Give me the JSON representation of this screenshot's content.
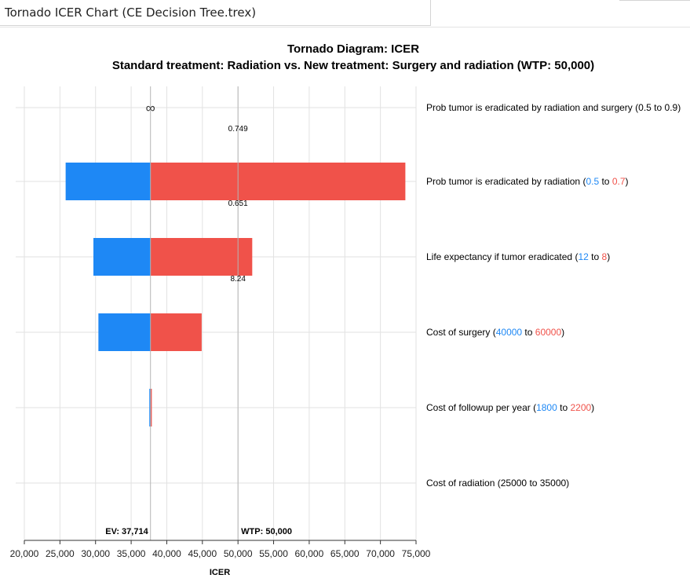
{
  "window": {
    "title": "Tornado ICER Chart (CE Decision Tree.trex)"
  },
  "chart_data": {
    "type": "tornado",
    "title": "Tornado Diagram: ICER",
    "subtitle": "Standard treatment: Radiation vs. New treatment: Surgery and radiation (WTP: 50,000)",
    "xlabel": "ICER",
    "xlim": [
      20000,
      75000
    ],
    "ticks": [
      20000,
      25000,
      30000,
      35000,
      40000,
      45000,
      50000,
      55000,
      60000,
      65000,
      70000,
      75000
    ],
    "tick_labels": [
      "20,000",
      "25,000",
      "30,000",
      "35,000",
      "40,000",
      "45,000",
      "50,000",
      "55,000",
      "60,000",
      "65,000",
      "70,000",
      "75,000"
    ],
    "ev": 37714,
    "ev_label": "EV: 37,714",
    "wtp": 50000,
    "wtp_label": "WTP: 50,000",
    "infinity_symbol": "∞",
    "colors": {
      "low": "#1e88f5",
      "high": "#f0524a",
      "grid": "#e2e2e2",
      "refline": "#b4b4b4"
    },
    "variables": [
      {
        "name": "Prob tumor is eradicated by radiation and surgery",
        "low": "0.5",
        "high": "0.9",
        "label_open": " (",
        "label_to": " to ",
        "label_close": ")",
        "colored": false,
        "low_icer": null,
        "high_icer": null,
        "infinite": true,
        "threshold": "0.749"
      },
      {
        "name": "Prob tumor is eradicated by radiation",
        "low": "0.5",
        "high": "0.7",
        "label_open": " (",
        "label_to": " to ",
        "label_close": ")",
        "colored": true,
        "low_icer": 25800,
        "high_icer": 73500,
        "infinite": false,
        "threshold": "0.651"
      },
      {
        "name": "Life expectancy if tumor eradicated",
        "low": "12",
        "high": "8",
        "label_open": " (",
        "label_to": " to ",
        "label_close": ")",
        "colored": true,
        "low_icer": 29700,
        "high_icer": 52000,
        "infinite": false,
        "threshold": "8.24"
      },
      {
        "name": "Cost of surgery",
        "low": "40000",
        "high": "60000",
        "label_open": " (",
        "label_to": " to ",
        "label_close": ")",
        "colored": true,
        "low_icer": 30400,
        "high_icer": 44900,
        "infinite": false,
        "threshold": null
      },
      {
        "name": "Cost of followup per year",
        "low": "1800",
        "high": "2200",
        "label_open": " (",
        "label_to": " to ",
        "label_close": ")",
        "colored": true,
        "low_icer": 37550,
        "high_icer": 37900,
        "infinite": false,
        "threshold": null
      },
      {
        "name": "Cost of radiation",
        "low": "25000",
        "high": "35000",
        "label_open": " (",
        "label_to": " to ",
        "label_close": ")",
        "colored": false,
        "low_icer": null,
        "high_icer": null,
        "infinite": false,
        "threshold": null
      }
    ]
  }
}
